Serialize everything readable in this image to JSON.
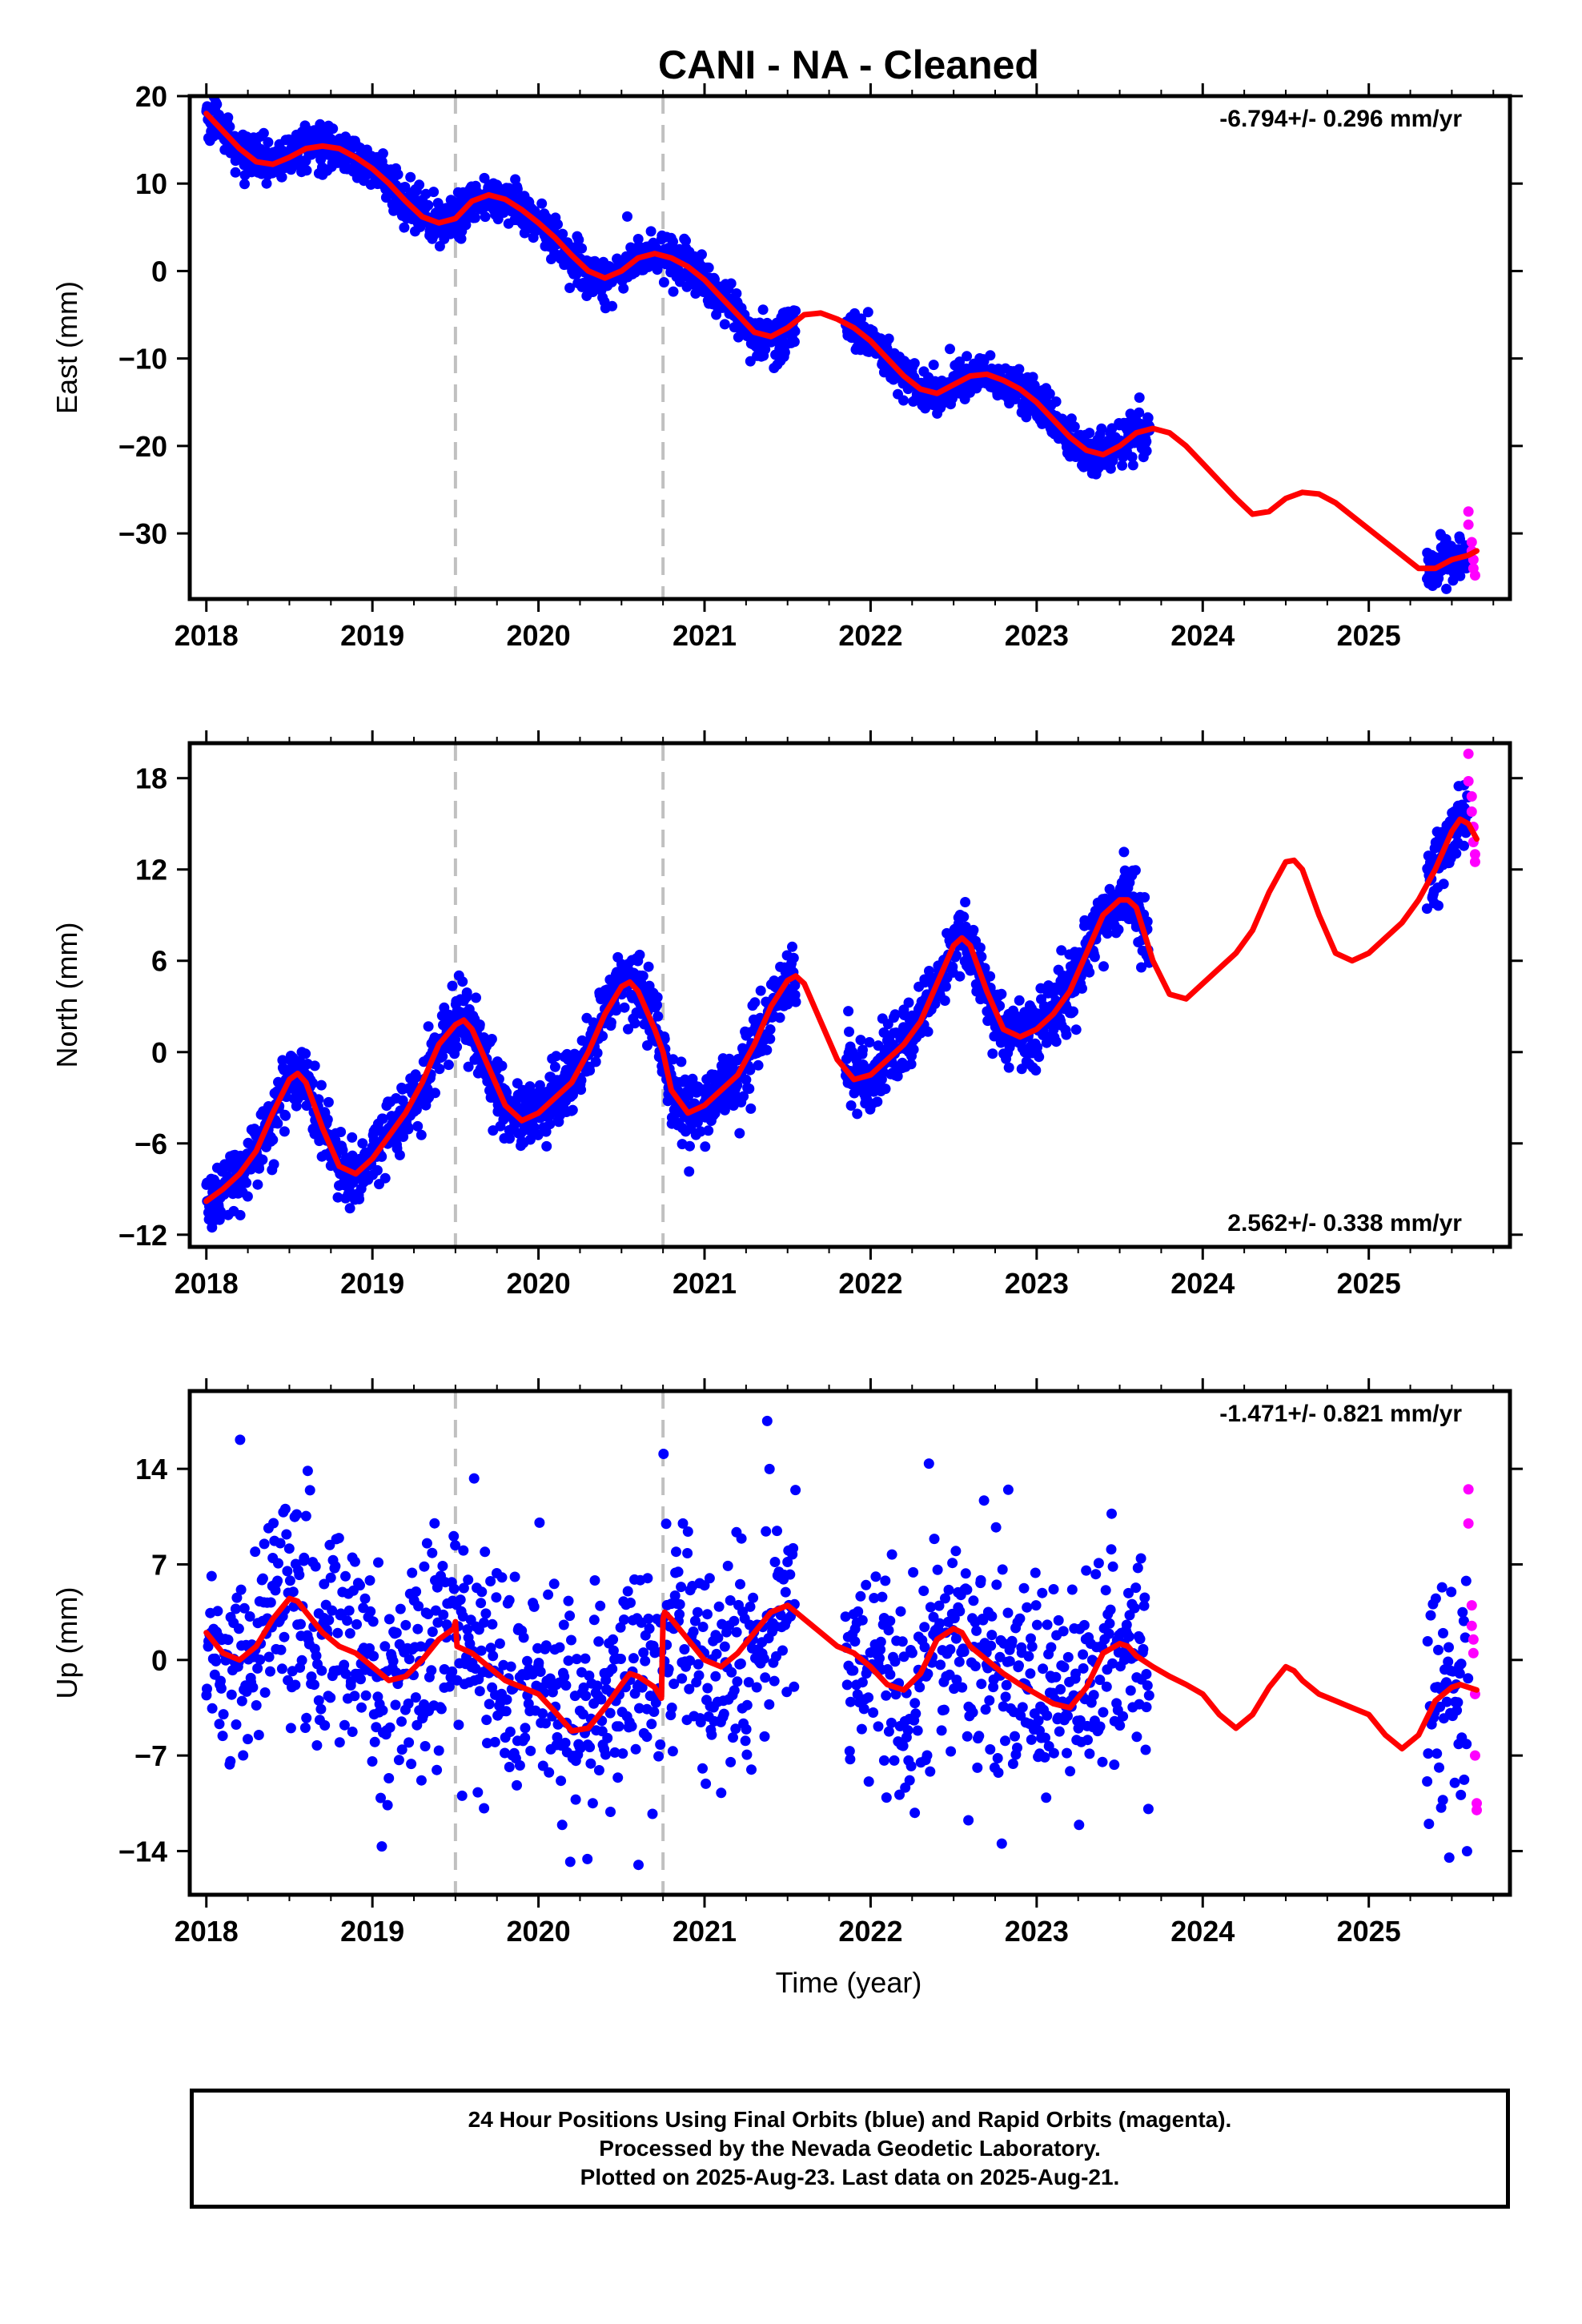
{
  "title": "CANI  - NA - Cleaned",
  "xlabel": "Time (year)",
  "colors": {
    "final_orbits": "#0000ff",
    "rapid_orbits": "#ff00ff",
    "model": "#ff0000",
    "event_lines": "#c0c0c0"
  },
  "footer": {
    "line1": "24 Hour Positions Using Final Orbits (blue) and Rapid Orbits (magenta).",
    "line2": "Processed by the Nevada Geodetic Laboratory.",
    "line3": "Plotted on 2025-Aug-23. Last data on 2025-Aug-21."
  },
  "chart_data": [
    {
      "type": "scatter",
      "ylabel": "East (mm)",
      "rate": "-6.794+/- 0.296 mm/yr",
      "rate_position": "top-right",
      "xlim": [
        2017.9,
        2025.85
      ],
      "ylim": [
        -37.5,
        20
      ],
      "xticks": [
        2018,
        2019,
        2020,
        2021,
        2022,
        2023,
        2024,
        2025
      ],
      "yticks": [
        20,
        10,
        0,
        -10,
        -20,
        -30
      ],
      "event_lines": [
        2019.5,
        2020.75
      ],
      "model": {
        "name": "model fit",
        "x": [
          2018.0,
          2018.1,
          2018.2,
          2018.3,
          2018.4,
          2018.5,
          2018.6,
          2018.7,
          2018.8,
          2018.9,
          2019.0,
          2019.1,
          2019.2,
          2019.3,
          2019.4,
          2019.5,
          2019.6,
          2019.7,
          2019.8,
          2019.9,
          2020.0,
          2020.1,
          2020.2,
          2020.3,
          2020.4,
          2020.5,
          2020.6,
          2020.7,
          2020.8,
          2020.9,
          2021.0,
          2021.1,
          2021.2,
          2021.3,
          2021.4,
          2021.5,
          2021.6,
          2021.7,
          2021.8,
          2021.9,
          2022.0,
          2022.1,
          2022.2,
          2022.3,
          2022.4,
          2022.5,
          2022.6,
          2022.7,
          2022.8,
          2022.9,
          2023.0,
          2023.1,
          2023.2,
          2023.3,
          2023.4,
          2023.5,
          2023.6,
          2023.7,
          2023.8,
          2023.9,
          2024.0,
          2024.1,
          2024.2,
          2024.3,
          2024.4,
          2024.5,
          2024.6,
          2024.7,
          2024.8,
          2024.9,
          2025.0,
          2025.1,
          2025.2,
          2025.3,
          2025.4,
          2025.5,
          2025.6,
          2025.65
        ],
        "y": [
          18.0,
          16.0,
          14.0,
          12.5,
          12.2,
          13.0,
          14.0,
          14.3,
          14.0,
          13.0,
          11.7,
          10.0,
          8.0,
          6.2,
          5.5,
          6.0,
          8.0,
          8.7,
          8.2,
          7.0,
          5.5,
          3.8,
          1.8,
          0.0,
          -0.8,
          0.0,
          1.5,
          2.0,
          1.5,
          0.5,
          -1.0,
          -3.0,
          -5.0,
          -7.0,
          -7.5,
          -6.5,
          -5.0,
          -4.8,
          -5.5,
          -6.5,
          -8.0,
          -10.0,
          -12.0,
          -13.5,
          -14.0,
          -13.0,
          -12.0,
          -11.8,
          -12.5,
          -13.5,
          -15.0,
          -17.0,
          -19.0,
          -20.5,
          -21.0,
          -20.0,
          -18.5,
          -18.0,
          -18.5,
          -20.0,
          -22.0,
          -24.0,
          -26.0,
          -27.8,
          -27.5,
          -26.0,
          -25.3,
          -25.5,
          -26.5,
          -28.0,
          -29.5,
          -31.0,
          -32.5,
          -34.0,
          -34.0,
          -33.0,
          -32.5,
          -32.0
        ]
      },
      "segments_final": [
        [
          2018.0,
          2021.55
        ],
        [
          2021.85,
          2023.68
        ],
        [
          2025.35,
          2025.6
        ]
      ],
      "rapid_points": [
        [
          2025.6,
          -27.5
        ],
        [
          2025.6,
          -29.0
        ],
        [
          2025.62,
          -31.0
        ],
        [
          2025.62,
          -32.0
        ],
        [
          2025.63,
          -33.0
        ],
        [
          2025.63,
          -34.0
        ],
        [
          2025.64,
          -34.8
        ]
      ],
      "noise_mm": 1.2
    },
    {
      "type": "scatter",
      "ylabel": "North (mm)",
      "rate": "2.562+/- 0.338 mm/yr",
      "rate_position": "bottom-right",
      "xlim": [
        2017.9,
        2025.85
      ],
      "ylim": [
        -12.8,
        20.3
      ],
      "xticks": [
        2018,
        2019,
        2020,
        2021,
        2022,
        2023,
        2024,
        2025
      ],
      "yticks": [
        18,
        12,
        6,
        0,
        -6,
        -12
      ],
      "event_lines": [
        2019.5,
        2020.75
      ],
      "model": {
        "name": "model fit",
        "x": [
          2018.0,
          2018.1,
          2018.2,
          2018.3,
          2018.4,
          2018.5,
          2018.55,
          2018.6,
          2018.7,
          2018.8,
          2018.9,
          2019.0,
          2019.1,
          2019.2,
          2019.3,
          2019.4,
          2019.5,
          2019.55,
          2019.6,
          2019.7,
          2019.8,
          2019.9,
          2020.0,
          2020.1,
          2020.2,
          2020.3,
          2020.4,
          2020.5,
          2020.55,
          2020.6,
          2020.7,
          2020.75,
          2020.8,
          2020.9,
          2021.0,
          2021.1,
          2021.2,
          2021.3,
          2021.4,
          2021.5,
          2021.55,
          2021.6,
          2021.7,
          2021.8,
          2021.9,
          2022.0,
          2022.1,
          2022.2,
          2022.3,
          2022.4,
          2022.5,
          2022.55,
          2022.6,
          2022.7,
          2022.8,
          2022.9,
          2023.0,
          2023.1,
          2023.2,
          2023.3,
          2023.4,
          2023.5,
          2023.55,
          2023.6,
          2023.7,
          2023.8,
          2023.9,
          2024.0,
          2024.1,
          2024.2,
          2024.3,
          2024.4,
          2024.5,
          2024.55,
          2024.6,
          2024.7,
          2024.8,
          2024.9,
          2025.0,
          2025.1,
          2025.2,
          2025.3,
          2025.4,
          2025.5,
          2025.55,
          2025.6,
          2025.65
        ],
        "y": [
          -9.8,
          -9.0,
          -8.0,
          -6.5,
          -4.0,
          -1.8,
          -1.4,
          -2.0,
          -5.0,
          -7.5,
          -8.0,
          -7.0,
          -5.5,
          -4.0,
          -2.0,
          0.5,
          1.8,
          2.1,
          1.5,
          -1.0,
          -3.5,
          -4.5,
          -4.0,
          -3.0,
          -2.0,
          0.0,
          2.5,
          4.3,
          4.6,
          4.0,
          1.5,
          0.0,
          -2.5,
          -4.0,
          -3.5,
          -2.5,
          -1.5,
          0.5,
          3.0,
          4.7,
          5.0,
          4.5,
          2.0,
          -0.5,
          -1.8,
          -1.5,
          -0.5,
          0.5,
          2.0,
          4.5,
          7.0,
          7.5,
          7.0,
          4.0,
          1.5,
          1.0,
          1.5,
          2.5,
          4.0,
          6.5,
          9.0,
          10.0,
          10.0,
          9.5,
          6.0,
          3.8,
          3.5,
          4.5,
          5.5,
          6.5,
          8.0,
          10.5,
          12.5,
          12.6,
          12.0,
          9.0,
          6.5,
          6.0,
          6.5,
          7.5,
          8.5,
          10.0,
          12.0,
          14.5,
          15.3,
          15.0,
          14.0
        ]
      },
      "segments_final": [
        [
          2018.0,
          2021.55
        ],
        [
          2021.85,
          2023.68
        ],
        [
          2025.35,
          2025.6
        ]
      ],
      "rapid_points": [
        [
          2025.6,
          19.6
        ],
        [
          2025.6,
          17.8
        ],
        [
          2025.62,
          16.8
        ],
        [
          2025.62,
          15.8
        ],
        [
          2025.63,
          14.8
        ],
        [
          2025.63,
          13.8
        ],
        [
          2025.64,
          13.0
        ],
        [
          2025.64,
          12.5
        ]
      ],
      "noise_mm": 1.1
    },
    {
      "type": "scatter",
      "ylabel": "Up (mm)",
      "rate": "-1.471+/- 0.821 mm/yr",
      "rate_position": "top-right",
      "xlim": [
        2017.9,
        2025.85
      ],
      "ylim": [
        -17.2,
        19.7
      ],
      "xticks": [
        2018,
        2019,
        2020,
        2021,
        2022,
        2023,
        2024,
        2025
      ],
      "yticks": [
        14,
        7,
        0,
        -7,
        -14
      ],
      "event_lines": [
        2019.5,
        2020.75
      ],
      "model": {
        "name": "model fit",
        "x": [
          2018.0,
          2018.1,
          2018.2,
          2018.3,
          2018.4,
          2018.5,
          2018.55,
          2018.6,
          2018.7,
          2018.8,
          2018.9,
          2019.0,
          2019.1,
          2019.2,
          2019.3,
          2019.4,
          2019.49,
          2019.5,
          2019.51,
          2019.6,
          2019.7,
          2019.8,
          2019.9,
          2020.0,
          2020.1,
          2020.2,
          2020.3,
          2020.4,
          2020.5,
          2020.55,
          2020.6,
          2020.7,
          2020.74,
          2020.75,
          2020.76,
          2020.8,
          2020.9,
          2021.0,
          2021.1,
          2021.2,
          2021.3,
          2021.4,
          2021.5,
          2021.55,
          2021.6,
          2021.7,
          2021.8,
          2021.9,
          2022.0,
          2022.1,
          2022.2,
          2022.3,
          2022.4,
          2022.5,
          2022.55,
          2022.6,
          2022.7,
          2022.8,
          2022.9,
          2023.0,
          2023.1,
          2023.2,
          2023.3,
          2023.4,
          2023.5,
          2023.55,
          2023.6,
          2023.7,
          2023.8,
          2023.9,
          2024.0,
          2024.1,
          2024.2,
          2024.3,
          2024.4,
          2024.5,
          2024.55,
          2024.6,
          2024.7,
          2024.8,
          2024.9,
          2025.0,
          2025.1,
          2025.2,
          2025.3,
          2025.4,
          2025.5,
          2025.55,
          2025.6,
          2025.65
        ],
        "y": [
          2.0,
          0.5,
          0.0,
          1.0,
          3.0,
          4.5,
          4.3,
          3.5,
          2.0,
          1.0,
          0.5,
          -0.5,
          -1.5,
          -1.2,
          0.0,
          1.5,
          2.3,
          2.8,
          1.0,
          0.5,
          -0.5,
          -1.5,
          -2.0,
          -2.5,
          -3.8,
          -5.2,
          -5.0,
          -3.5,
          -1.8,
          -1.0,
          -1.2,
          -2.0,
          -2.8,
          3.0,
          3.5,
          3.0,
          1.5,
          0.0,
          -0.5,
          0.5,
          2.0,
          3.5,
          4.0,
          3.5,
          3.0,
          2.0,
          1.0,
          0.5,
          -0.5,
          -1.8,
          -2.2,
          -1.0,
          1.5,
          2.3,
          2.0,
          1.0,
          0.0,
          -1.0,
          -1.8,
          -2.5,
          -3.2,
          -3.5,
          -2.0,
          0.5,
          1.2,
          1.0,
          0.3,
          -0.5,
          -1.2,
          -1.8,
          -2.5,
          -4.0,
          -5.0,
          -4.0,
          -2.0,
          -0.5,
          -0.8,
          -1.5,
          -2.5,
          -3.0,
          -3.5,
          -4.0,
          -5.5,
          -6.5,
          -5.5,
          -3.0,
          -2.0,
          -1.8,
          -2.0,
          -2.2
        ],
        "discontinuities": [
          2019.5,
          2020.75
        ]
      },
      "segments_final": [
        [
          2018.0,
          2021.55
        ],
        [
          2021.85,
          2023.68
        ],
        [
          2025.35,
          2025.6
        ]
      ],
      "rapid_points": [
        [
          2025.6,
          12.5
        ],
        [
          2025.6,
          10.0
        ],
        [
          2025.62,
          4.0
        ],
        [
          2025.62,
          2.5
        ],
        [
          2025.63,
          1.5
        ],
        [
          2025.63,
          0.5
        ],
        [
          2025.64,
          -2.5
        ],
        [
          2025.64,
          -7.0
        ],
        [
          2025.65,
          -10.5
        ],
        [
          2025.65,
          -11.0
        ]
      ],
      "noise_mm": 4.0
    }
  ]
}
